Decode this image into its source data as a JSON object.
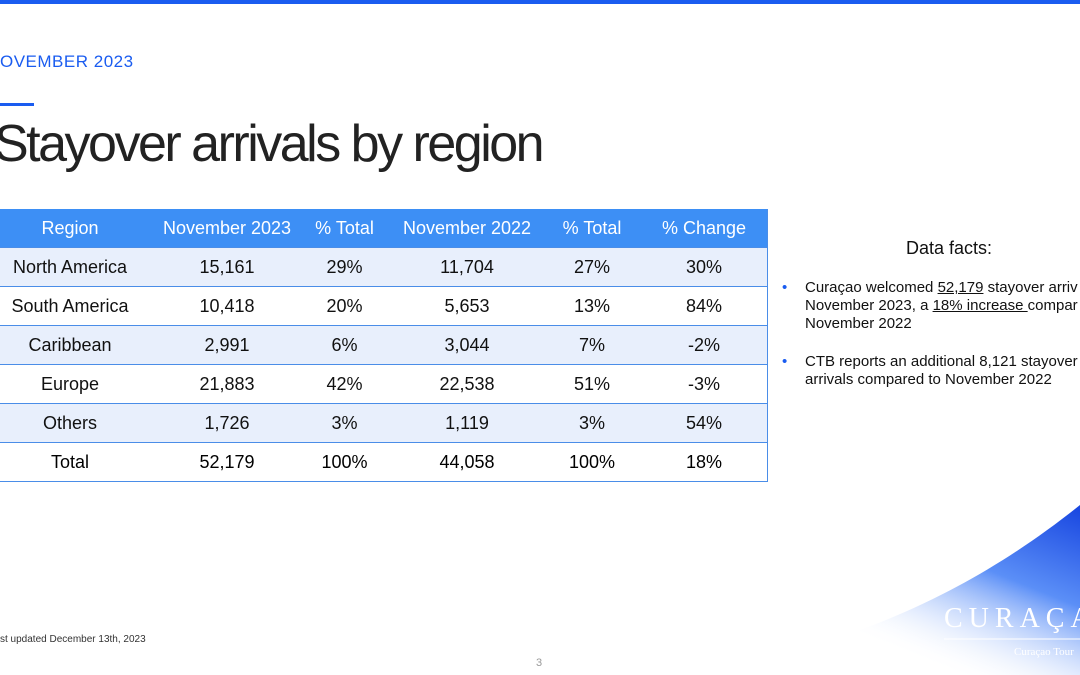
{
  "header": {
    "eyebrow": "OVEMBER 2023",
    "title": "Stayover arrivals by region"
  },
  "table": {
    "columns": [
      "Region",
      "November 2023",
      "% Total",
      "November 2022",
      "% Total",
      "% Change"
    ],
    "rows": [
      [
        "North America",
        "15,161",
        "29%",
        "11,704",
        "27%",
        "30%"
      ],
      [
        "South America",
        "10,418",
        "20%",
        "5,653",
        "13%",
        "84%"
      ],
      [
        "Caribbean",
        "2,991",
        "6%",
        "3,044",
        "7%",
        "-2%"
      ],
      [
        "Europe",
        "21,883",
        "42%",
        "22,538",
        "51%",
        "-3%"
      ],
      [
        "Others",
        "1,726",
        "3%",
        "1,119",
        "3%",
        "54%"
      ],
      [
        "Total",
        "52,179",
        "100%",
        "44,058",
        "100%",
        "18%"
      ]
    ]
  },
  "facts": {
    "title": "Data facts:",
    "bullets": [
      [
        [
          "Curaçao welcomed ",
          "52,179",
          " stayover arriv"
        ],
        [
          "November 2023, a ",
          "18% increase ",
          "compar"
        ],
        [
          "November 2022"
        ]
      ],
      [
        [
          "CTB reports an additional 8,121 stayover"
        ],
        [
          "arrivals compared to November 2022"
        ]
      ]
    ]
  },
  "footer": {
    "updated": "st updated December 13th, 2023",
    "page": "3",
    "logo": "CURAÇA",
    "logo_sub": "Curaçao Tour"
  }
}
